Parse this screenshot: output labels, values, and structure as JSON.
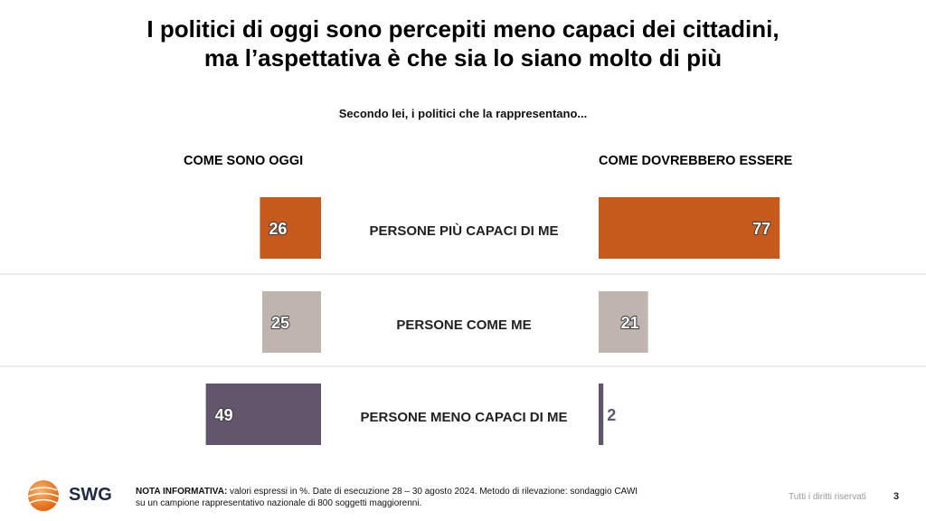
{
  "title_line1": "I politici di oggi sono percepiti meno capaci dei cittadini,",
  "title_line2": "ma l’aspettativa è che sia lo siano molto di più",
  "subtitle": "Secondo lei, i politici che la rappresentano...",
  "colors": {
    "row1": "#C55A1C",
    "row2": "#BFB5AE",
    "row3": "#62566C",
    "separator": "#D9D9D9"
  },
  "chart_data": {
    "type": "bar",
    "categories": [
      "PERSONE PIÙ CAPACI DI ME",
      "PERSONE COME ME",
      "PERSONE MENO CAPACI DI ME"
    ],
    "series": [
      {
        "name": "COME SONO OGGI",
        "values": [
          26,
          25,
          49
        ]
      },
      {
        "name": "COME DOVREBBERO ESSERE",
        "values": [
          77,
          21,
          2
        ]
      }
    ],
    "unit": "%"
  },
  "footer": {
    "note_label": "NOTA INFORMATIVA:",
    "note_text1": " valori espressi in %. Date di esecuzione 28 – 30 agosto 2024. Metodo di rilevazione: sondaggio CAWI",
    "note_text2": "su un campione rappresentativo nazionale di 800 soggetti maggiorenni.",
    "rights": "Tutti i diritti riservati",
    "page": "3"
  },
  "logo": {
    "text": "SWG",
    "icon": "swg-globe-icon"
  }
}
